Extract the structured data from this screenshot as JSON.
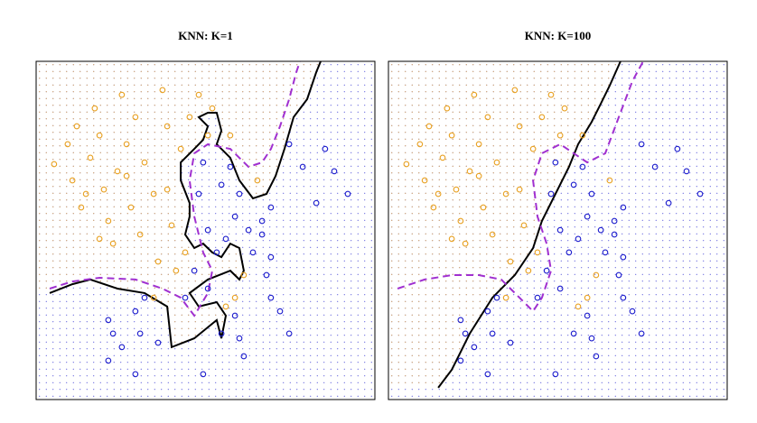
{
  "chart_data": [
    {
      "type": "scatter",
      "title": "KNN: K=1",
      "xlim": [
        0,
        100
      ],
      "ylim": [
        0,
        100
      ],
      "series": [
        {
          "color": "#e8a020",
          "x": [
            5.3,
            9.3,
            10.7,
            12,
            13.3,
            16,
            17.3,
            18.7,
            20,
            21.3,
            22.7,
            24,
            25.3,
            26.7,
            28,
            29.3,
            30.7,
            32,
            34.7,
            36,
            37.3,
            38.7,
            40,
            41.3,
            42.7,
            45.3,
            48,
            50.7,
            52,
            56,
            58.7,
            61.3,
            65.3,
            57.3,
            34.7,
            26.7,
            14.7,
            18.7,
            38.7,
            44
          ],
          "y": [
            69.6,
            75.5,
            64.8,
            80.8,
            56.8,
            71.5,
            86.1,
            78.1,
            62.1,
            52.8,
            46.1,
            67.5,
            90.1,
            75.5,
            56.8,
            83.5,
            48.8,
            70.1,
            60.8,
            40.8,
            91.5,
            80.8,
            51.5,
            38.1,
            74.1,
            83.5,
            90.1,
            78.1,
            86.1,
            27.5,
            30.1,
            36.8,
            64.8,
            78.1,
            30.1,
            66.1,
            60.8,
            47.5,
            62.1,
            43.5
          ]
        },
        {
          "color": "#1a1acc",
          "x": [
            74.7,
            78.7,
            85.3,
            88,
            92,
            82.7,
            69.3,
            66.7,
            62.7,
            58.7,
            56,
            53.3,
            50.7,
            48,
            49.3,
            54.7,
            60,
            64,
            68,
            69.3,
            72,
            74.7,
            58.7,
            60,
            54.7,
            50.7,
            46.7,
            44,
            32,
            29.3,
            21.3,
            22.7,
            25.3,
            30.7,
            21.3,
            29.3,
            49.3,
            61.3,
            36,
            66.7,
            69.3,
            57.3
          ],
          "y": [
            75.5,
            68.8,
            74.1,
            67.5,
            60.8,
            58.1,
            56.8,
            52.8,
            50.1,
            54.1,
            47.5,
            43.5,
            50.1,
            60.8,
            70.1,
            63.5,
            60.8,
            43.5,
            36.8,
            30.1,
            26.1,
            19.5,
            24.8,
            18.1,
            19.5,
            32.8,
            38.1,
            30.1,
            30.1,
            26.1,
            23.5,
            19.5,
            15.5,
            19.5,
            11.5,
            7.5,
            7.5,
            12.8,
            16.8,
            48.8,
            42.1,
            68.8
          ]
        }
      ],
      "lines": [
        {
          "color": "#000000",
          "dash": false,
          "x": [
            4,
            10.7,
            16,
            24,
            32,
            38.7,
            40,
            46.7,
            53.3,
            54.7,
            56,
            53.3,
            48,
            45.3,
            50.7,
            57.3,
            60,
            61.3,
            60,
            57.3,
            54.7,
            52,
            49.3,
            46.7,
            44,
            45.3,
            45.3,
            42.7,
            42.7,
            46.7,
            49.3,
            50.7,
            48,
            50.7,
            53.3,
            54.7,
            53.3,
            57.3,
            60,
            64,
            68,
            70.7,
            73.3,
            76,
            80,
            82.7,
            84
          ],
          "y": [
            31.5,
            34.1,
            35.5,
            32.8,
            31.5,
            27.5,
            15.5,
            18.1,
            23.5,
            18.1,
            24.8,
            28.8,
            27.5,
            31.5,
            35.5,
            38.1,
            35.5,
            38.1,
            44.8,
            46.1,
            42.1,
            43.5,
            46.1,
            44.8,
            48.8,
            54.1,
            58.1,
            64.8,
            70.1,
            74.1,
            76.8,
            80.8,
            83.5,
            84.8,
            84.8,
            79.5,
            75.5,
            71.5,
            64.8,
            59.5,
            60.8,
            66.1,
            74.1,
            83.5,
            88.8,
            96.8,
            100
          ]
        },
        {
          "color": "#a030d0",
          "dash": true,
          "x": [
            4,
            10.7,
            18.7,
            29.3,
            37.3,
            42.7,
            46.7,
            50.7,
            52,
            49.3,
            46.7,
            45.3,
            46.7,
            50.7,
            57.3,
            62.7,
            66.7,
            69.3,
            72,
            74.7,
            76.8,
            77.9
          ],
          "y": [
            32.8,
            34.9,
            36,
            35.5,
            32.8,
            30.1,
            24.8,
            31.5,
            38.1,
            43.5,
            54.1,
            64.8,
            72.8,
            75.5,
            74.1,
            68.8,
            70.1,
            74.1,
            80.8,
            88.8,
            96.8,
            100
          ]
        }
      ]
    },
    {
      "type": "scatter",
      "title": "KNN: K=100",
      "xlim": [
        0,
        100
      ],
      "ylim": [
        0,
        100
      ],
      "series": [
        {
          "color": "#e8a020",
          "x": [
            5.3,
            9.3,
            10.7,
            12,
            13.3,
            16,
            17.3,
            18.7,
            20,
            21.3,
            22.7,
            24,
            25.3,
            26.7,
            28,
            29.3,
            30.7,
            32,
            34.7,
            36,
            37.3,
            38.7,
            40,
            41.3,
            42.7,
            45.3,
            48,
            50.7,
            52,
            56,
            58.7,
            61.3,
            65.3,
            57.3,
            34.7,
            26.7,
            14.7,
            18.7,
            38.7,
            44
          ],
          "y": [
            69.6,
            75.5,
            64.8,
            80.8,
            56.8,
            71.5,
            86.1,
            78.1,
            62.1,
            52.8,
            46.1,
            67.5,
            90.1,
            75.5,
            56.8,
            83.5,
            48.8,
            70.1,
            60.8,
            40.8,
            91.5,
            80.8,
            51.5,
            38.1,
            74.1,
            83.5,
            90.1,
            78.1,
            86.1,
            27.5,
            30.1,
            36.8,
            64.8,
            78.1,
            30.1,
            66.1,
            60.8,
            47.5,
            62.1,
            43.5
          ]
        },
        {
          "color": "#1a1acc",
          "x": [
            74.7,
            78.7,
            85.3,
            88,
            92,
            82.7,
            69.3,
            66.7,
            62.7,
            58.7,
            56,
            53.3,
            50.7,
            48,
            49.3,
            54.7,
            60,
            64,
            68,
            69.3,
            72,
            74.7,
            58.7,
            60,
            54.7,
            50.7,
            46.7,
            44,
            32,
            29.3,
            21.3,
            22.7,
            25.3,
            30.7,
            21.3,
            29.3,
            49.3,
            61.3,
            36,
            66.7,
            69.3,
            57.3
          ],
          "y": [
            75.5,
            68.8,
            74.1,
            67.5,
            60.8,
            58.1,
            56.8,
            52.8,
            50.1,
            54.1,
            47.5,
            43.5,
            50.1,
            60.8,
            70.1,
            63.5,
            60.8,
            43.5,
            36.8,
            30.1,
            26.1,
            19.5,
            24.8,
            18.1,
            19.5,
            32.8,
            38.1,
            30.1,
            30.1,
            26.1,
            23.5,
            19.5,
            15.5,
            19.5,
            11.5,
            7.5,
            7.5,
            12.8,
            16.8,
            48.8,
            42.1,
            68.8
          ]
        }
      ],
      "lines": [
        {
          "color": "#000000",
          "dash": false,
          "x": [
            14.7,
            18.7,
            24,
            30.7,
            37.3,
            42.7,
            45.3,
            49.3,
            53.3,
            56,
            60,
            62.7,
            65.3,
            68.5
          ],
          "y": [
            3.5,
            8.8,
            19.5,
            30.1,
            36.8,
            44.8,
            52.8,
            60.8,
            68.8,
            75.5,
            82.1,
            87.5,
            92.8,
            100
          ]
        },
        {
          "color": "#a030d0",
          "dash": true,
          "x": [
            2.7,
            10.7,
            18.7,
            26.7,
            33.3,
            38.7,
            42.7,
            45.3,
            48,
            46.7,
            44,
            42.7,
            45.3,
            50.7,
            58.7,
            64,
            68,
            72,
            75.2
          ],
          "y": [
            32.8,
            35.5,
            36.8,
            36.8,
            35.5,
            30.1,
            26.1,
            30.1,
            38.1,
            46.1,
            54.1,
            64.8,
            72.8,
            75.5,
            70.1,
            72.8,
            83.5,
            94.1,
            100
          ]
        }
      ]
    }
  ]
}
